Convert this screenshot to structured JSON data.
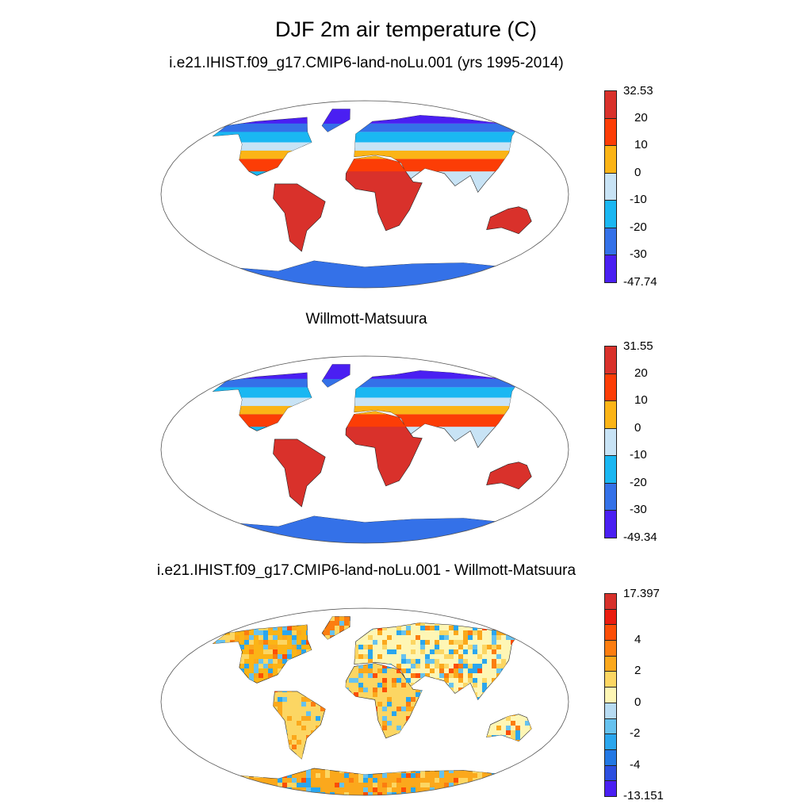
{
  "figure": {
    "title": "DJF 2m air temperature (C)"
  },
  "panels": [
    {
      "title": "i.e21.IHIST.f09_g17.CMIP6-land-noLu.001 (yrs 1995-2014)",
      "colorbar": {
        "max_label": "32.53",
        "min_label": "-47.74",
        "ticks": [
          "20",
          "10",
          "0",
          "-10",
          "-20",
          "-30"
        ],
        "colors": [
          "#d9312b",
          "#fc3d06",
          "#fbb416",
          "#c8e3f5",
          "#1ab7f2",
          "#3471e8",
          "#4a1ff2"
        ]
      }
    },
    {
      "title": "Willmott-Matsuura",
      "colorbar": {
        "max_label": "31.55",
        "min_label": "-49.34",
        "ticks": [
          "20",
          "10",
          "0",
          "-10",
          "-20",
          "-30"
        ],
        "colors": [
          "#d9312b",
          "#fc3d06",
          "#fbb416",
          "#c8e3f5",
          "#1ab7f2",
          "#3471e8",
          "#4a1ff2"
        ]
      }
    },
    {
      "title": "i.e21.IHIST.f09_g17.CMIP6-land-noLu.001 - Willmott-Matsuura",
      "colorbar": {
        "max_label": "17.397",
        "min_label": "-13.151",
        "ticks": [
          "4",
          "2",
          "0",
          "-2",
          "-4"
        ],
        "colors": [
          "#d7302a",
          "#ea1c0f",
          "#fc4e06",
          "#fc7d10",
          "#fba81c",
          "#fcd663",
          "#fef6b5",
          "#b7dbf2",
          "#66c2ef",
          "#2aa6ee",
          "#2278e4",
          "#2c4fe0",
          "#4a1ff2"
        ]
      }
    }
  ]
}
